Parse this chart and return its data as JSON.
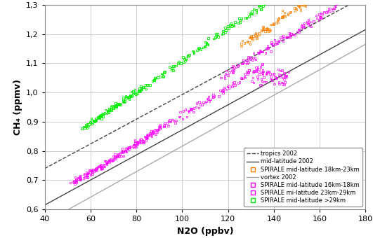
{
  "xlabel": "N2O (ppbv)",
  "ylabel": "CH₄ (ppmv)",
  "xlim": [
    40,
    180
  ],
  "ylim": [
    0.6,
    1.3
  ],
  "xticks": [
    40,
    60,
    80,
    100,
    120,
    140,
    160,
    180
  ],
  "yticks": [
    0.6,
    0.7,
    0.8,
    0.9,
    1.0,
    1.1,
    1.2,
    1.3
  ],
  "tropics_line": {
    "x": [
      40,
      180
    ],
    "y": [
      0.74,
      1.33
    ],
    "color": "#444444",
    "style": "--",
    "label": "tropics 2002"
  },
  "midlat_line": {
    "x": [
      40,
      180
    ],
    "y": [
      0.615,
      1.215
    ],
    "color": "#444444",
    "style": "-",
    "label": "mid-latitude 2002"
  },
  "vortex_line": {
    "x": [
      40,
      180
    ],
    "y": [
      0.555,
      1.165
    ],
    "color": "#aaaaaa",
    "style": "-",
    "label": "vortex 2002"
  },
  "colors": {
    "orange": "#FF8000",
    "magenta": "#FF00FF",
    "green": "#00EE00"
  },
  "background_color": "#ffffff",
  "grid_color": "#bbbbbb"
}
